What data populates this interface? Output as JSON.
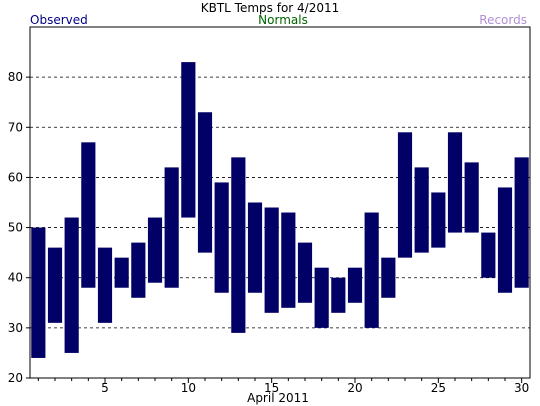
{
  "chart_data": {
    "type": "bar",
    "title": "KBTL Temps for 4/2011",
    "legend": {
      "observed": "Observed",
      "normals": "Normals",
      "records": "Records",
      "observed_color": "#000080",
      "normals_color": "#006400",
      "records_color": "#b38ed6"
    },
    "xlabel": "April 2011",
    "x_ticks": [
      5,
      10,
      15,
      20,
      25,
      30
    ],
    "y_ticks": [
      20,
      30,
      40,
      50,
      60,
      70,
      80
    ],
    "ylim": [
      20,
      90
    ],
    "xlim": [
      0.5,
      30.5
    ],
    "grid": true,
    "bar_color": "#000066",
    "series": [
      {
        "name": "Observed",
        "days": [
          1,
          2,
          3,
          4,
          5,
          6,
          7,
          8,
          9,
          10,
          11,
          12,
          13,
          14,
          15,
          16,
          17,
          18,
          19,
          20,
          21,
          22,
          23,
          24,
          25,
          26,
          27,
          28,
          29,
          30
        ],
        "high": [
          50,
          46,
          52,
          67,
          46,
          44,
          47,
          52,
          62,
          83,
          73,
          59,
          64,
          55,
          54,
          53,
          47,
          42,
          40,
          42,
          53,
          44,
          69,
          62,
          57,
          69,
          63,
          49,
          58,
          64
        ],
        "low": [
          24,
          31,
          25,
          38,
          31,
          38,
          36,
          39,
          38,
          52,
          45,
          37,
          29,
          37,
          33,
          34,
          35,
          30,
          33,
          35,
          30,
          36,
          44,
          45,
          46,
          49,
          49,
          40,
          37,
          38
        ]
      }
    ]
  }
}
